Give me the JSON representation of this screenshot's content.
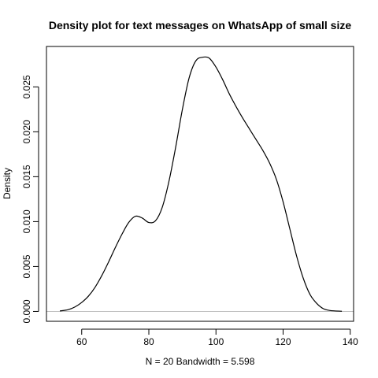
{
  "chart_data": {
    "type": "line",
    "title": "Density plot for text messages on WhatsApp of small size",
    "xlabel": "N = 20   Bandwidth = 5.598",
    "ylabel": "Density",
    "xlim": [
      49.5,
      141.0
    ],
    "ylim": [
      -0.0011,
      0.0295
    ],
    "x_ticks": [
      60,
      80,
      100,
      120,
      140
    ],
    "x_tick_labels": [
      "60",
      "80",
      "100",
      "120",
      "140"
    ],
    "y_ticks": [
      0.0,
      0.005,
      0.01,
      0.015,
      0.02,
      0.025
    ],
    "y_tick_labels": [
      "0.000",
      "0.005",
      "0.010",
      "0.015",
      "0.020",
      "0.025"
    ],
    "grid": false,
    "baseline": 0,
    "series": [
      {
        "x": [
          53.5,
          56,
          58,
          60,
          62,
          64,
          66,
          68,
          70,
          72,
          74,
          76,
          78,
          80,
          82,
          84,
          86,
          88,
          90,
          92,
          94,
          96,
          98,
          100,
          102,
          104,
          106,
          108,
          110,
          112,
          114,
          116,
          118,
          120,
          122,
          124,
          126,
          128,
          130,
          132,
          134,
          137.5
        ],
        "y": [
          5e-05,
          0.0002,
          0.0005,
          0.001,
          0.0017,
          0.0027,
          0.004,
          0.0055,
          0.0071,
          0.0086,
          0.0099,
          0.0106,
          0.0104,
          0.0099,
          0.0101,
          0.0116,
          0.0145,
          0.0183,
          0.0225,
          0.026,
          0.0279,
          0.0283,
          0.0282,
          0.0272,
          0.0258,
          0.0242,
          0.0228,
          0.0215,
          0.0203,
          0.0191,
          0.0179,
          0.0165,
          0.0147,
          0.0122,
          0.0092,
          0.0062,
          0.0037,
          0.0019,
          0.0009,
          0.0003,
          0.0001,
          2e-05
        ]
      }
    ]
  }
}
